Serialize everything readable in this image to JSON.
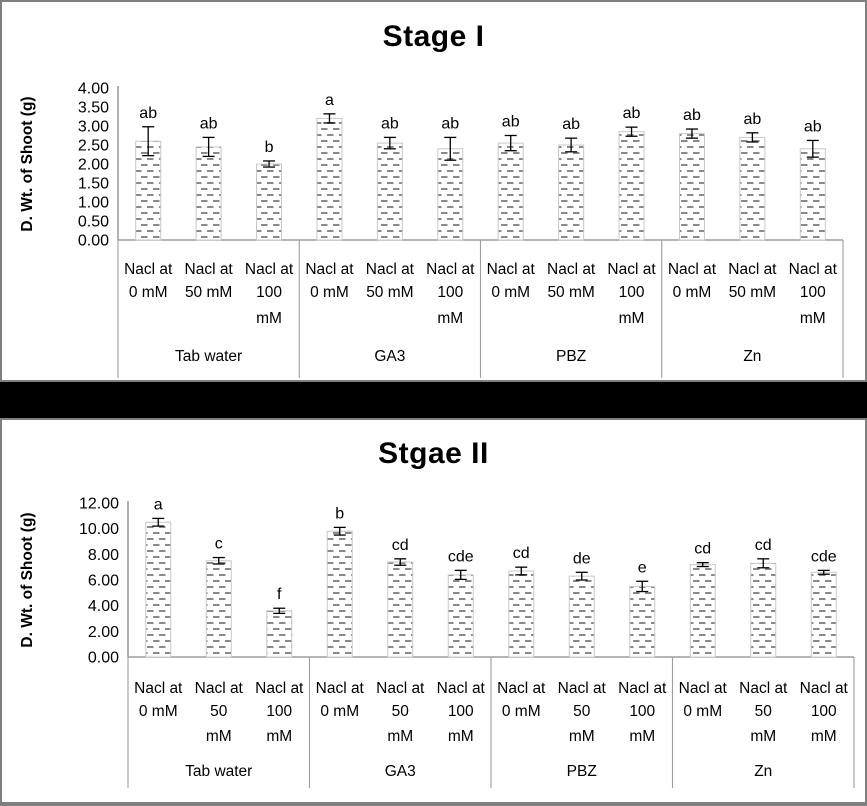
{
  "figure": {
    "background": "#ffffff",
    "border_color": "#7f7f7f",
    "separator_color": "#000000",
    "axis_color": "#9e9e9e",
    "text_color": "#000000",
    "bar_pattern": {
      "background": "#ffffff",
      "dash_color": "#8a8a8a",
      "border_color": "#c8c8c8"
    }
  },
  "chart_data": [
    {
      "type": "bar",
      "title": "Stage I",
      "ylabel": "D. Wt. of Shoot (g)",
      "xlabel": "",
      "ylim": [
        0,
        4
      ],
      "ytick_step": 0.5,
      "ytick_labels": [
        "0.00",
        "0.50",
        "1.00",
        "1.50",
        "2.00",
        "2.50",
        "3.00",
        "3.50",
        "4.00"
      ],
      "grid": false,
      "legend": false,
      "groups": [
        "Tab water",
        "GA3",
        "PBZ",
        "Zn"
      ],
      "x_tick_lines": [
        [
          "Nacl at",
          "0 mM"
        ],
        [
          "Nacl at",
          "50 mM"
        ],
        [
          "Nacl at",
          "100",
          "mM"
        ]
      ],
      "bars": [
        {
          "group": "Tab water",
          "x": "Nacl at 0 mM",
          "value": 2.6,
          "error": 0.38,
          "letter": "ab"
        },
        {
          "group": "Tab water",
          "x": "Nacl at 50 mM",
          "value": 2.45,
          "error": 0.25,
          "letter": "ab"
        },
        {
          "group": "Tab water",
          "x": "Nacl at 100 mM",
          "value": 2.0,
          "error": 0.08,
          "letter": "b"
        },
        {
          "group": "GA3",
          "x": "Nacl at 0 mM",
          "value": 3.2,
          "error": 0.12,
          "letter": "a"
        },
        {
          "group": "GA3",
          "x": "Nacl at 50 mM",
          "value": 2.55,
          "error": 0.15,
          "letter": "ab"
        },
        {
          "group": "GA3",
          "x": "Nacl at 100 mM",
          "value": 2.4,
          "error": 0.3,
          "letter": "ab"
        },
        {
          "group": "PBZ",
          "x": "Nacl at 0 mM",
          "value": 2.55,
          "error": 0.2,
          "letter": "ab"
        },
        {
          "group": "PBZ",
          "x": "Nacl at 50 mM",
          "value": 2.5,
          "error": 0.18,
          "letter": "ab"
        },
        {
          "group": "PBZ",
          "x": "Nacl at 100 mM",
          "value": 2.85,
          "error": 0.12,
          "letter": "ab"
        },
        {
          "group": "Zn",
          "x": "Nacl at 0 mM",
          "value": 2.8,
          "error": 0.12,
          "letter": "ab"
        },
        {
          "group": "Zn",
          "x": "Nacl at 50 mM",
          "value": 2.7,
          "error": 0.12,
          "letter": "ab"
        },
        {
          "group": "Zn",
          "x": "Nacl at 100 mM",
          "value": 2.4,
          "error": 0.22,
          "letter": "ab"
        }
      ]
    },
    {
      "type": "bar",
      "title": "Stgae II",
      "ylabel": "D. Wt. of Shoot (g)",
      "xlabel": "",
      "ylim": [
        0,
        12
      ],
      "ytick_step": 2,
      "ytick_labels": [
        "0.00",
        "2.00",
        "4.00",
        "6.00",
        "8.00",
        "10.00",
        "12.00"
      ],
      "grid": false,
      "legend": false,
      "groups": [
        "Tab water",
        "GA3",
        "PBZ",
        "Zn"
      ],
      "x_tick_lines": [
        [
          "Nacl at",
          "0 mM"
        ],
        [
          "Nacl at",
          "50",
          "mM"
        ],
        [
          "Nacl at",
          "100",
          "mM"
        ]
      ],
      "bars": [
        {
          "group": "Tab water",
          "x": "Nacl at 0 mM",
          "value": 10.5,
          "error": 0.3,
          "letter": "a"
        },
        {
          "group": "Tab water",
          "x": "Nacl at 50 mM",
          "value": 7.5,
          "error": 0.25,
          "letter": "c"
        },
        {
          "group": "Tab water",
          "x": "Nacl at 100 mM",
          "value": 3.6,
          "error": 0.2,
          "letter": "f"
        },
        {
          "group": "GA3",
          "x": "Nacl at 0 mM",
          "value": 9.8,
          "error": 0.3,
          "letter": "b"
        },
        {
          "group": "GA3",
          "x": "Nacl at 50 mM",
          "value": 7.4,
          "error": 0.25,
          "letter": "cd"
        },
        {
          "group": "GA3",
          "x": "Nacl at 100 mM",
          "value": 6.4,
          "error": 0.35,
          "letter": "cde"
        },
        {
          "group": "PBZ",
          "x": "Nacl at 0 mM",
          "value": 6.7,
          "error": 0.3,
          "letter": "cd"
        },
        {
          "group": "PBZ",
          "x": "Nacl at 50 mM",
          "value": 6.3,
          "error": 0.3,
          "letter": "de"
        },
        {
          "group": "PBZ",
          "x": "Nacl at 100 mM",
          "value": 5.5,
          "error": 0.4,
          "letter": "e"
        },
        {
          "group": "Zn",
          "x": "Nacl at 0 mM",
          "value": 7.2,
          "error": 0.15,
          "letter": "cd"
        },
        {
          "group": "Zn",
          "x": "Nacl at 50 mM",
          "value": 7.3,
          "error": 0.35,
          "letter": "cd"
        },
        {
          "group": "Zn",
          "x": "Nacl at 100 mM",
          "value": 6.6,
          "error": 0.15,
          "letter": "cde"
        }
      ]
    }
  ]
}
